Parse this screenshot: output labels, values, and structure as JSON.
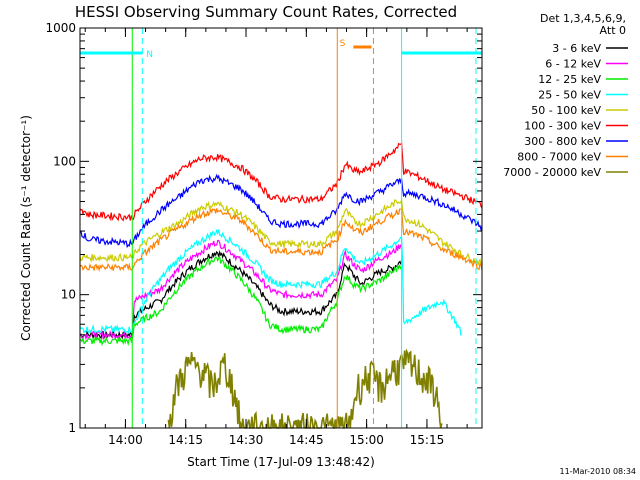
{
  "chart_data": {
    "type": "line",
    "title": "HESSI Observing Summary Count Rates, Corrected",
    "xlabel": "Start Time (17-Jul-09 13:48:42)",
    "ylabel": "Corrected Count Rate (s⁻¹ detector⁻¹)",
    "y_scale": "log",
    "ylim": [
      1,
      1000
    ],
    "x_unit": "minutes after 13:48:42",
    "xlim": [
      0,
      100
    ],
    "x_ticks": [
      {
        "label": "14:00",
        "t": 11.3
      },
      {
        "label": "14:15",
        "t": 26.3
      },
      {
        "label": "14:30",
        "t": 41.3
      },
      {
        "label": "14:45",
        "t": 56.3
      },
      {
        "label": "15:00",
        "t": 71.3
      },
      {
        "label": "15:15",
        "t": 86.3
      }
    ],
    "y_ticks": [
      {
        "label": "1",
        "v": 1
      },
      {
        "label": "10",
        "v": 10
      },
      {
        "label": "100",
        "v": 100
      },
      {
        "label": "1000",
        "v": 1000
      }
    ],
    "legend_header": [
      "Det 1,3,4,5,6,9,",
      "Att 0"
    ],
    "footer": "11-Mar-2010 08:34",
    "series": [
      {
        "name": "3 - 6 keV",
        "color": "#000000",
        "points": [
          [
            0,
            5
          ],
          [
            13,
            5
          ],
          [
            13.5,
            7
          ],
          [
            20,
            9
          ],
          [
            30,
            18
          ],
          [
            34,
            21
          ],
          [
            40,
            15
          ],
          [
            47,
            8.5
          ],
          [
            50,
            7.5
          ],
          [
            60,
            7.5
          ],
          [
            64,
            10
          ],
          [
            66,
            17
          ],
          [
            68,
            14
          ],
          [
            70,
            12
          ],
          [
            75,
            15
          ],
          [
            78,
            16
          ],
          [
            80,
            18
          ]
        ]
      },
      {
        "name": "6 - 12 keV",
        "color": "#ff00ff",
        "points": [
          [
            0,
            5
          ],
          [
            13,
            5
          ],
          [
            13.5,
            9
          ],
          [
            20,
            11
          ],
          [
            30,
            21
          ],
          [
            34,
            25
          ],
          [
            40,
            18
          ],
          [
            47,
            11
          ],
          [
            50,
            10
          ],
          [
            60,
            10
          ],
          [
            64,
            13
          ],
          [
            66,
            20
          ],
          [
            68,
            17
          ],
          [
            70,
            15
          ],
          [
            75,
            19
          ],
          [
            78,
            21
          ],
          [
            80,
            24
          ]
        ]
      },
      {
        "name": "12 - 25 keV",
        "color": "#00ee00",
        "points": [
          [
            0,
            4.5
          ],
          [
            13,
            4.5
          ],
          [
            13.5,
            6
          ],
          [
            20,
            7.5
          ],
          [
            30,
            16
          ],
          [
            34,
            19
          ],
          [
            40,
            13
          ],
          [
            47,
            6
          ],
          [
            50,
            5.5
          ],
          [
            60,
            5.5
          ],
          [
            64,
            9
          ],
          [
            66,
            14
          ],
          [
            68,
            12
          ],
          [
            70,
            11
          ],
          [
            75,
            13
          ],
          [
            78,
            15
          ],
          [
            80,
            17
          ]
        ]
      },
      {
        "name": "25 - 50 keV",
        "color": "#00ffff",
        "points": [
          [
            0,
            5.5
          ],
          [
            12,
            5.5
          ],
          [
            13,
            5.5
          ],
          [
            20,
            13
          ],
          [
            30,
            25
          ],
          [
            34,
            30
          ],
          [
            40,
            22
          ],
          [
            47,
            13
          ],
          [
            50,
            12
          ],
          [
            60,
            12
          ],
          [
            64,
            15
          ],
          [
            66,
            23
          ],
          [
            68,
            19
          ],
          [
            70,
            17
          ],
          [
            75,
            21
          ],
          [
            78,
            24
          ],
          [
            80,
            27
          ],
          [
            80.5,
            6
          ],
          [
            90,
            9
          ],
          [
            95,
            5
          ]
        ]
      },
      {
        "name": "50 - 100 keV",
        "color": "#cccc00",
        "points": [
          [
            0,
            19
          ],
          [
            13,
            19
          ],
          [
            15,
            23
          ],
          [
            25,
            35
          ],
          [
            30,
            45
          ],
          [
            34,
            48
          ],
          [
            40,
            40
          ],
          [
            47,
            25
          ],
          [
            50,
            24
          ],
          [
            60,
            24
          ],
          [
            64,
            30
          ],
          [
            66,
            43
          ],
          [
            68,
            36
          ],
          [
            70,
            34
          ],
          [
            75,
            42
          ],
          [
            78,
            48
          ],
          [
            80,
            52
          ],
          [
            80.5,
            38
          ],
          [
            85,
            33
          ],
          [
            90,
            25
          ],
          [
            95,
            20
          ],
          [
            100,
            17
          ]
        ]
      },
      {
        "name": "100 - 300 keV",
        "color": "#ff0000",
        "points": [
          [
            0,
            45
          ],
          [
            2,
            40
          ],
          [
            13,
            38
          ],
          [
            15,
            45
          ],
          [
            25,
            85
          ],
          [
            30,
            105
          ],
          [
            34,
            108
          ],
          [
            40,
            90
          ],
          [
            47,
            55
          ],
          [
            50,
            52
          ],
          [
            60,
            52
          ],
          [
            64,
            68
          ],
          [
            66,
            95
          ],
          [
            68,
            85
          ],
          [
            70,
            83
          ],
          [
            75,
            100
          ],
          [
            78,
            120
          ],
          [
            80,
            135
          ],
          [
            80.5,
            85
          ],
          [
            85,
            75
          ],
          [
            90,
            62
          ],
          [
            95,
            55
          ],
          [
            100,
            47
          ]
        ]
      },
      {
        "name": "300 - 800 keV",
        "color": "#0000ff",
        "points": [
          [
            0,
            30
          ],
          [
            2,
            26
          ],
          [
            13,
            24
          ],
          [
            15,
            30
          ],
          [
            25,
            55
          ],
          [
            30,
            72
          ],
          [
            34,
            75
          ],
          [
            40,
            62
          ],
          [
            47,
            36
          ],
          [
            50,
            34
          ],
          [
            60,
            34
          ],
          [
            64,
            43
          ],
          [
            66,
            58
          ],
          [
            68,
            52
          ],
          [
            70,
            50
          ],
          [
            75,
            60
          ],
          [
            78,
            68
          ],
          [
            80,
            72
          ],
          [
            80.5,
            58
          ],
          [
            85,
            55
          ],
          [
            90,
            48
          ],
          [
            95,
            40
          ],
          [
            100,
            32
          ]
        ]
      },
      {
        "name": "800 - 7000 keV",
        "color": "#ff8000",
        "points": [
          [
            0,
            16
          ],
          [
            13,
            16
          ],
          [
            15,
            19
          ],
          [
            25,
            32
          ],
          [
            30,
            40
          ],
          [
            34,
            43
          ],
          [
            40,
            36
          ],
          [
            47,
            22
          ],
          [
            50,
            21
          ],
          [
            60,
            21
          ],
          [
            64,
            26
          ],
          [
            66,
            36
          ],
          [
            68,
            31
          ],
          [
            70,
            29
          ],
          [
            75,
            36
          ],
          [
            78,
            40
          ],
          [
            80,
            44
          ],
          [
            80.5,
            30
          ],
          [
            85,
            27
          ],
          [
            90,
            22
          ],
          [
            95,
            19
          ],
          [
            100,
            16
          ]
        ]
      },
      {
        "name": "7000 - 20000 keV",
        "color": "#808000",
        "points": [
          [
            22,
            1
          ],
          [
            24,
            2
          ],
          [
            27,
            3
          ],
          [
            30,
            2.8
          ],
          [
            33,
            2
          ],
          [
            36,
            3
          ],
          [
            38,
            2
          ],
          [
            40,
            1
          ],
          [
            67,
            1
          ],
          [
            69,
            2
          ],
          [
            72,
            2.5
          ],
          [
            75,
            2
          ],
          [
            78,
            2.8
          ],
          [
            82,
            3
          ],
          [
            85,
            2.5
          ],
          [
            88,
            2
          ],
          [
            90,
            1
          ]
        ]
      }
    ],
    "annotations": [
      {
        "label": "N",
        "color": "#00ffff",
        "line_value": 650,
        "span": [
          0,
          15.5
        ],
        "marker_t": 15.5
      },
      {
        "label": "S",
        "color": "#ff8000",
        "line_value": 720,
        "span": [
          68,
          72.5
        ],
        "marker_t": 73
      },
      {
        "label": "",
        "color": "#00ffff",
        "line_value": 650,
        "span": [
          80,
          100
        ],
        "marker_t": 98.5
      }
    ],
    "vertical_lines": [
      {
        "t": 0,
        "color": "#00ffff",
        "style": "solid"
      },
      {
        "t": 13,
        "color": "#00ee00",
        "style": "solid"
      },
      {
        "t": 15.5,
        "color": "#00ffff",
        "style": "dashed"
      },
      {
        "t": 64,
        "color": "#ff8000",
        "style": "solid"
      },
      {
        "t": 73,
        "color": "#ff8000",
        "style": "dashed"
      },
      {
        "t": 80,
        "color": "#00ffff",
        "style": "solid"
      },
      {
        "t": 98.5,
        "color": "#00ffff",
        "style": "dashed"
      }
    ]
  }
}
